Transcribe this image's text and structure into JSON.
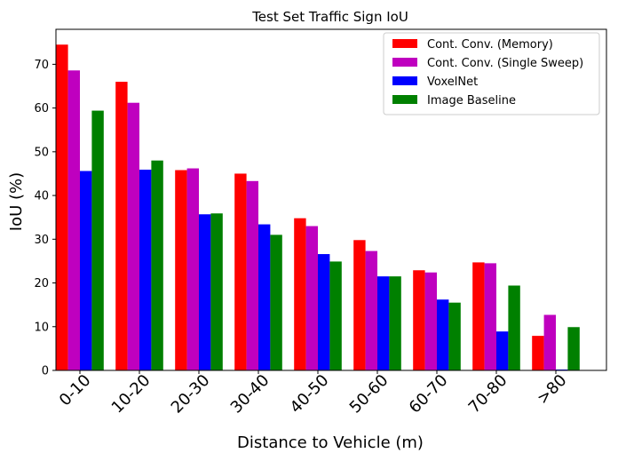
{
  "chart_data": {
    "type": "bar",
    "title": "Test Set Traffic Sign IoU",
    "xlabel": "Distance to Vehicle (m)",
    "ylabel": "IoU (%)",
    "ylim": [
      0,
      78
    ],
    "yticks": [
      0,
      10,
      20,
      30,
      40,
      50,
      60,
      70
    ],
    "categories": [
      "0-10",
      "10-20",
      "20-30",
      "30-40",
      "40-50",
      "50-60",
      "60-70",
      "70-80",
      ">80"
    ],
    "series": [
      {
        "name": "Cont. Conv. (Memory)",
        "color": "#ff0000",
        "values": [
          74.5,
          66.0,
          45.8,
          45.0,
          34.8,
          29.8,
          22.9,
          24.7,
          7.9
        ]
      },
      {
        "name": "Cont. Conv. (Single Sweep)",
        "color": "#bf00bf",
        "values": [
          68.6,
          61.2,
          46.2,
          43.3,
          33.0,
          27.3,
          22.4,
          24.5,
          12.7
        ]
      },
      {
        "name": "VoxelNet",
        "color": "#0000ff",
        "values": [
          45.6,
          45.9,
          35.7,
          33.4,
          26.6,
          21.5,
          16.2,
          8.9,
          0.2
        ]
      },
      {
        "name": "Image Baseline",
        "color": "#008000",
        "values": [
          59.4,
          48.0,
          35.9,
          31.0,
          24.9,
          21.5,
          15.5,
          19.4,
          9.9
        ]
      }
    ],
    "legend_position": "top-right",
    "grid": false
  }
}
